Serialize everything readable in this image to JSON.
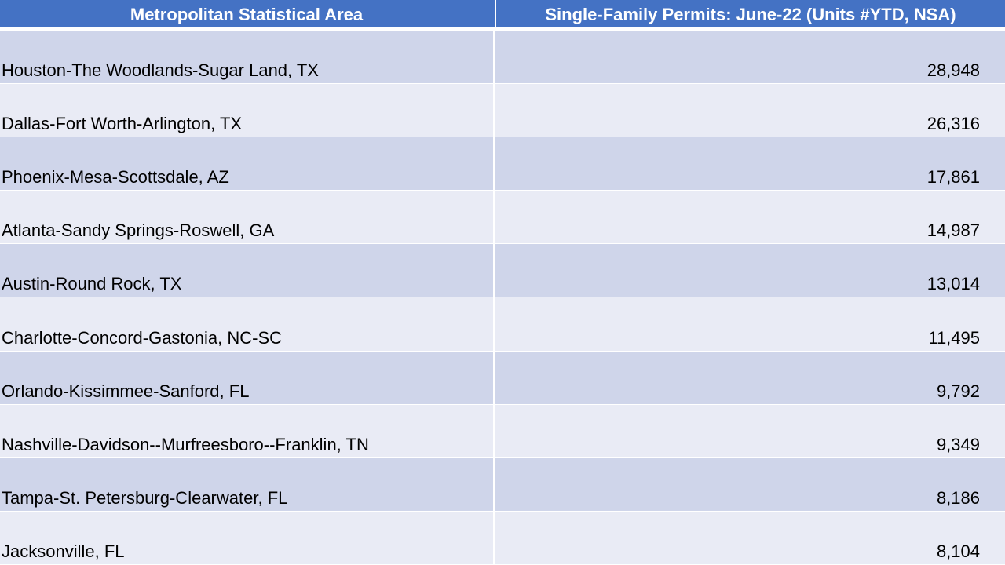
{
  "header": {
    "col1": "Metropolitan Statistical Area",
    "col2": "Single-Family Permits: June-22 (Units #YTD, NSA)"
  },
  "rows": [
    {
      "area": "Houston-The Woodlands-Sugar Land, TX",
      "permits": "28,948"
    },
    {
      "area": "Dallas-Fort Worth-Arlington, TX",
      "permits": "26,316"
    },
    {
      "area": "Phoenix-Mesa-Scottsdale, AZ",
      "permits": "17,861"
    },
    {
      "area": "Atlanta-Sandy Springs-Roswell, GA",
      "permits": "14,987"
    },
    {
      "area": "Austin-Round Rock, TX",
      "permits": "13,014"
    },
    {
      "area": "Charlotte-Concord-Gastonia, NC-SC",
      "permits": "11,495"
    },
    {
      "area": "Orlando-Kissimmee-Sanford, FL",
      "permits": "9,792"
    },
    {
      "area": "Nashville-Davidson--Murfreesboro--Franklin, TN",
      "permits": "9,349"
    },
    {
      "area": "Tampa-St. Petersburg-Clearwater, FL",
      "permits": "8,186"
    },
    {
      "area": "Jacksonville, FL",
      "permits": "8,104"
    }
  ],
  "colors": {
    "header_bg": "#4472c4",
    "row_dark": "#cfd5ea",
    "row_light": "#e9ebf5"
  }
}
